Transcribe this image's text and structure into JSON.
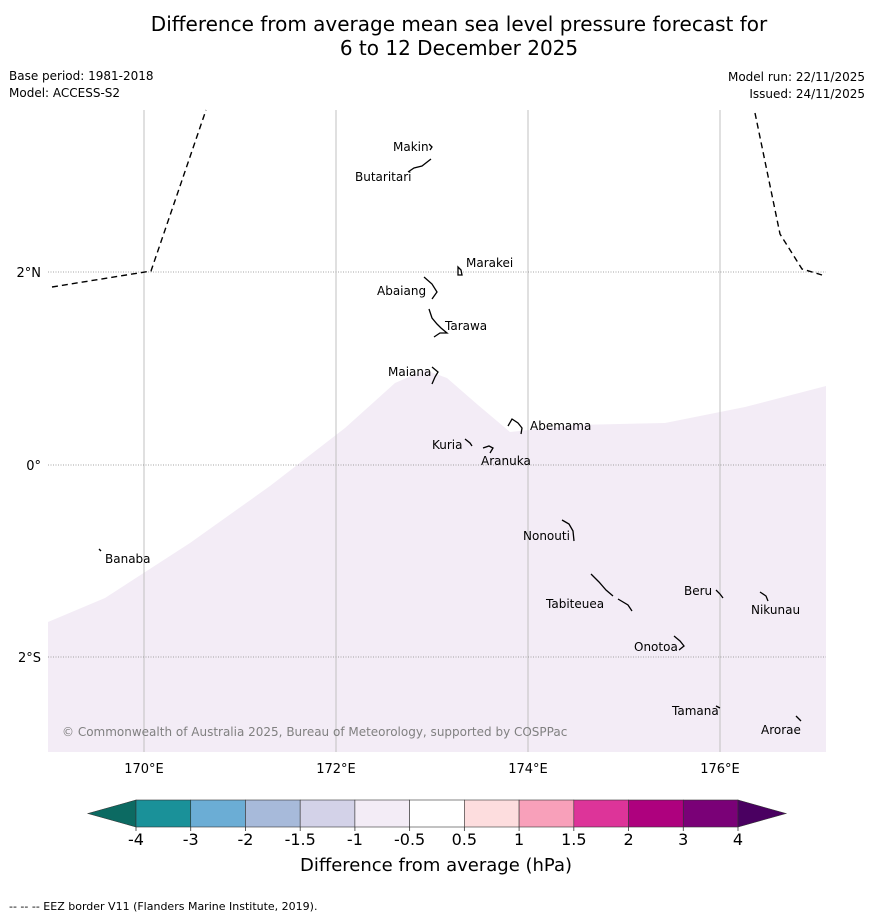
{
  "title": {
    "line1": "Difference from average mean sea level pressure forecast for",
    "line2": "6 to 12 December 2025"
  },
  "meta": {
    "base_period": "Base period: 1981-2018",
    "model": "Model: ACCESS-S2",
    "model_run": "Model run: 22/11/2025",
    "issued": "Issued: 24/11/2025"
  },
  "map": {
    "lat_labels": [
      "2°N",
      "0°",
      "2°S"
    ],
    "lon_labels": [
      "170°E",
      "172°E",
      "174°E",
      "176°E"
    ],
    "islands": [
      "Makin",
      "Butaritari",
      "Marakei",
      "Abaiang",
      "Tarawa",
      "Maiana",
      "Abemama",
      "Kuria",
      "Aranuka",
      "Nonouti",
      "Banaba",
      "Beru",
      "Tabiteuea",
      "Nikunau",
      "Onotoa",
      "Tamana",
      "Arorae"
    ],
    "copyright": "© Commonwealth of Australia 2025, Bureau of Meteorology, supported by COSPPac",
    "shaded_category": "-1 to -0.5 hPa",
    "shade_color": "#f3ecf6"
  },
  "colorbar": {
    "title": "Difference from average (hPa)",
    "ticks": [
      "-4",
      "-3",
      "-2",
      "-1.5",
      "-1",
      "-0.5",
      "0.5",
      "1",
      "1.5",
      "2",
      "3",
      "4"
    ],
    "colors": [
      "#0c6a62",
      "#1a9199",
      "#6badd5",
      "#a7bada",
      "#d3d2e8",
      "#f3ecf6",
      "#ffffff",
      "#fdddde",
      "#f8a0ba",
      "#dd3499",
      "#ae017e",
      "#7a0177",
      "#4a0061"
    ]
  },
  "footer": {
    "legend": "--  --  -- EEZ border V11 (Flanders Marine Institute, 2019)."
  }
}
